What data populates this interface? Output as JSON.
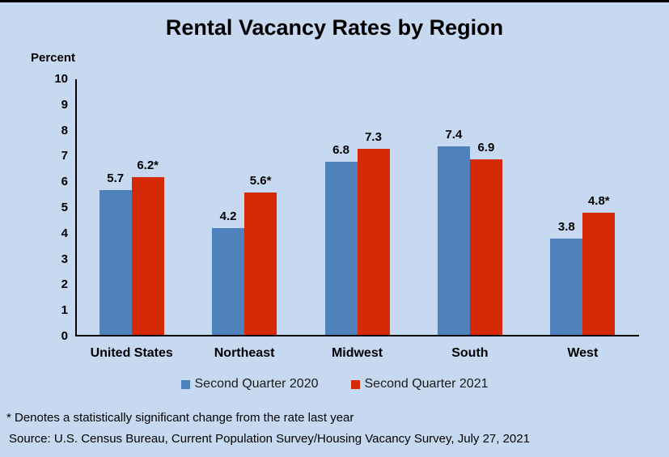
{
  "title": "Rental Vacancy Rates by Region",
  "y_axis": {
    "label": "Percent"
  },
  "footnote": "* Denotes a statistically significant change from the rate last year",
  "source": "Source: U.S. Census Bureau, Current Population Survey/Housing Vacancy Survey, July 27, 2021",
  "chart_data": {
    "type": "bar",
    "title": "Rental Vacancy Rates by Region",
    "ylabel": "Percent",
    "xlabel": "",
    "ylim": [
      0,
      10
    ],
    "yticks": [
      0,
      1,
      2,
      3,
      4,
      5,
      6,
      7,
      8,
      9,
      10
    ],
    "grid": false,
    "legend_position": "bottom",
    "background_color": "#c7d9f0",
    "categories": [
      "United States",
      "Northeast",
      "Midwest",
      "South",
      "West"
    ],
    "series": [
      {
        "name": "Second Quarter 2020",
        "color": "#4f81bd",
        "values": [
          5.7,
          4.2,
          6.8,
          7.4,
          3.8
        ],
        "point_labels": [
          "5.7",
          "4.2",
          "6.8",
          "7.4",
          "3.8"
        ]
      },
      {
        "name": "Second Quarter 2021",
        "color": "#d62908",
        "values": [
          6.2,
          5.6,
          7.3,
          6.9,
          4.8
        ],
        "point_labels": [
          "6.2*",
          "5.6*",
          "7.3",
          "6.9",
          "4.8*"
        ]
      }
    ]
  }
}
